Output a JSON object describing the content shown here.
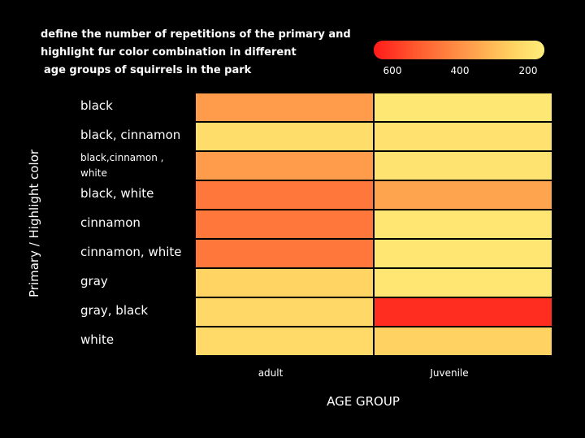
{
  "title_lines": [
    "define the number of repetitions of the primary and",
    "highlight fur color combination in different",
    "age groups of squirrels in the park"
  ],
  "colorbar": {
    "ticks": [
      "600",
      "400",
      "200"
    ],
    "tick_values": [
      600,
      400,
      200
    ],
    "min": 150,
    "max": 700,
    "colors_low_to_high": [
      "#ffee7a",
      "#ffd060",
      "#ff9a4a",
      "#ff5a2e",
      "#ff1a1a"
    ]
  },
  "chart_data": {
    "type": "heatmap",
    "title": "define the number of repetitions of the primary and highlight fur color combination in different age groups of squirrels in the park",
    "xlabel": "AGE GROUP",
    "ylabel": "Primary / Highlight color",
    "x_categories": [
      "adult",
      "Juvenile"
    ],
    "y_categories": [
      "black",
      "black, cinnamon",
      "black,cinnamon , white",
      "black, white",
      "cinnamon",
      "cinnamon, white",
      "gray",
      "gray, black",
      "white"
    ],
    "values": [
      [
        420,
        180
      ],
      [
        230,
        210
      ],
      [
        420,
        200
      ],
      [
        500,
        400
      ],
      [
        500,
        190
      ],
      [
        500,
        190
      ],
      [
        270,
        190
      ],
      [
        250,
        660
      ],
      [
        240,
        280
      ]
    ]
  }
}
